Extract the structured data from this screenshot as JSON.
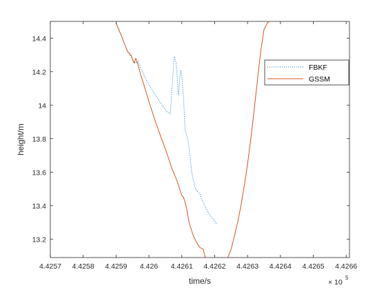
{
  "chart_data": {
    "type": "line",
    "title": "",
    "xlabel": "time/s",
    "ylabel": "height/m",
    "x_exponent_label": "× 10",
    "x_exponent_power": "5",
    "xlim": [
      442.57,
      442.661
    ],
    "ylim": [
      13.09,
      14.5
    ],
    "x_scale_factor": 1000,
    "xticks": [
      442.57,
      442.58,
      442.59,
      442.6,
      442.61,
      442.62,
      442.63,
      442.64,
      442.65,
      442.66
    ],
    "xtick_labels": [
      "4.4257",
      "4.4258",
      "4.4259",
      "4.426",
      "4.4261",
      "4.4262",
      "4.4263",
      "4.4264",
      "4.4265",
      "4.4266"
    ],
    "yticks": [
      13.2,
      13.4,
      13.6,
      13.8,
      14.0,
      14.2,
      14.4
    ],
    "ytick_labels": [
      "13.2",
      "13.4",
      "13.6",
      "13.8",
      "14",
      "14.2",
      "14.4"
    ],
    "grid": false,
    "legend_position": "top-right",
    "series": [
      {
        "name": "FBKF",
        "color": "#0072BD",
        "style": "dotted",
        "x": [
          442.59,
          442.5915,
          442.5925,
          442.5935,
          442.5945,
          442.5955,
          442.596,
          442.5967,
          442.5975,
          442.5985,
          442.6,
          442.602,
          442.604,
          442.6055,
          442.6065,
          442.607,
          442.6077,
          442.6083,
          442.6088,
          442.609,
          442.6093,
          442.6097,
          442.61,
          442.6105,
          442.611,
          442.6115,
          442.612,
          442.613,
          442.6135,
          442.6142,
          442.6148,
          442.6155,
          442.616,
          442.617,
          442.618,
          442.619,
          442.62,
          442.6205
        ],
        "y": [
          14.49,
          14.42,
          14.37,
          14.32,
          14.29,
          14.26,
          14.25,
          14.26,
          14.22,
          14.18,
          14.12,
          14.06,
          14.0,
          13.96,
          13.95,
          14.1,
          14.29,
          14.25,
          14.1,
          14.06,
          14.14,
          14.21,
          14.17,
          14.05,
          13.85,
          13.82,
          13.78,
          13.6,
          13.55,
          13.5,
          13.48,
          13.47,
          13.44,
          13.4,
          13.36,
          13.33,
          13.31,
          13.29
        ]
      },
      {
        "name": "GSSM",
        "color": "#D95319",
        "style": "solid",
        "x": [
          442.59,
          442.5915,
          442.5925,
          442.5935,
          442.5945,
          442.5955,
          442.596,
          442.5967,
          442.5975,
          442.5985,
          442.6,
          442.602,
          442.604,
          442.6055,
          442.607,
          442.6085,
          442.6095,
          442.61,
          442.6105,
          442.611,
          442.6115,
          442.612,
          442.6125,
          442.6135,
          442.6145,
          442.6155,
          442.6165,
          442.6175,
          442.618,
          442.6187,
          442.619,
          442.6197,
          442.6201,
          442.6205,
          442.621,
          442.6215,
          442.622,
          442.6225,
          442.623,
          442.6235,
          442.624,
          442.625,
          442.626,
          442.627,
          442.628,
          442.629,
          442.63,
          442.631,
          442.632,
          442.633,
          442.634,
          442.635,
          442.636,
          442.6365
        ],
        "y": [
          14.49,
          14.42,
          14.37,
          14.32,
          14.3,
          14.25,
          14.28,
          14.24,
          14.18,
          14.12,
          14.02,
          13.9,
          13.79,
          13.71,
          13.62,
          13.55,
          13.49,
          13.46,
          13.45,
          13.42,
          13.38,
          13.32,
          13.28,
          13.22,
          13.18,
          13.15,
          13.14,
          13.06,
          13.02,
          13.0,
          13.0,
          12.94,
          13.0,
          13.08,
          13.07,
          13.06,
          13.05,
          13.05,
          13.06,
          13.07,
          13.09,
          13.14,
          13.22,
          13.3,
          13.4,
          13.52,
          13.65,
          13.8,
          13.97,
          14.15,
          14.32,
          14.45,
          14.49,
          14.5
        ]
      }
    ]
  }
}
